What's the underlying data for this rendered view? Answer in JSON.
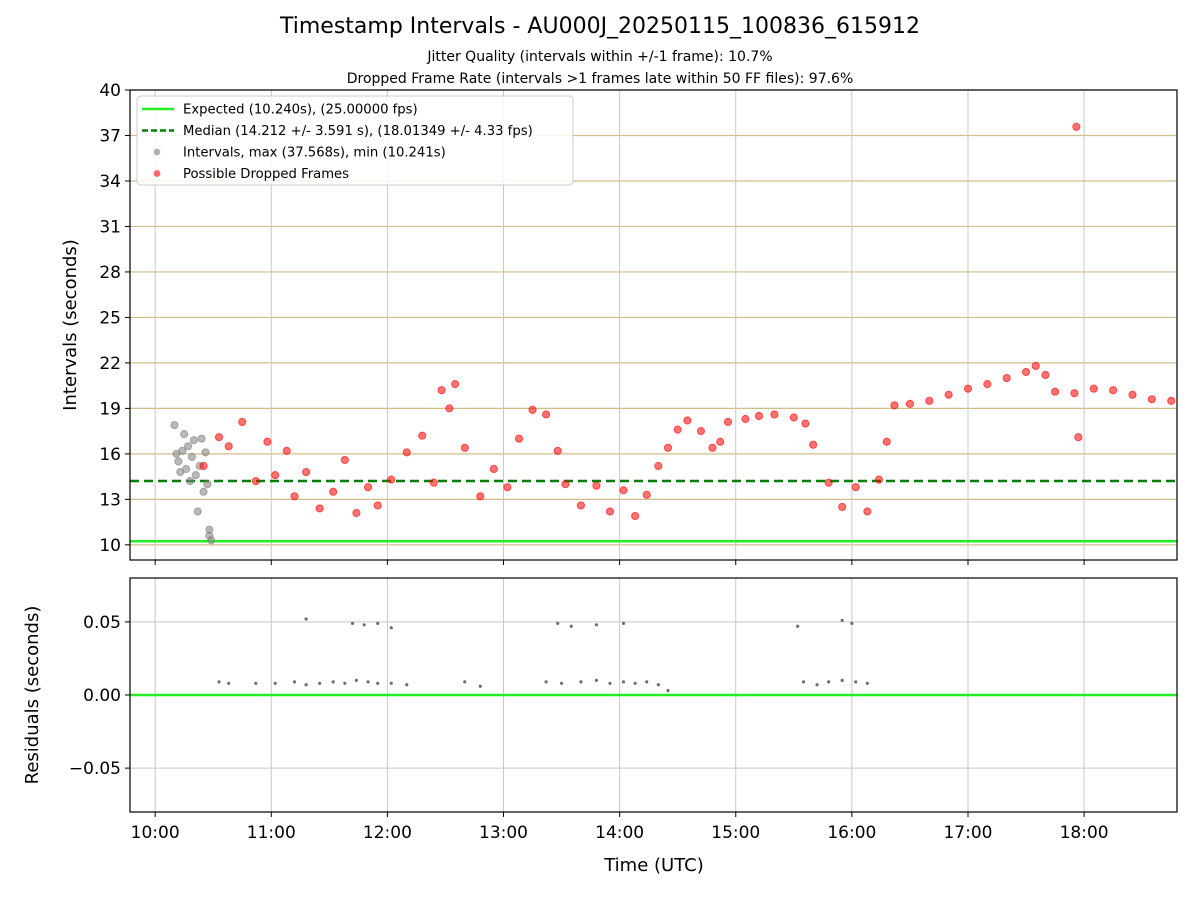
{
  "chart_data": [
    {
      "type": "scatter",
      "title": "Timestamp Intervals - AU000J_20250115_100836_615912",
      "subtitle_1": "Jitter Quality (intervals within +/-1 frame): 10.7%",
      "subtitle_2": "Dropped Frame Rate (intervals >1 frames late within 50 FF files): 97.6%",
      "ylabel": "Intervals (seconds)",
      "ylim": [
        9.0,
        40.0
      ],
      "yticks": [
        10,
        13,
        16,
        19,
        22,
        25,
        28,
        31,
        34,
        37,
        40
      ],
      "ytick_labels": [
        "10",
        "13",
        "16",
        "19",
        "22",
        "25",
        "28",
        "31",
        "34",
        "37",
        "40"
      ],
      "xlim": [
        "09:47",
        "18:48"
      ],
      "grid": true,
      "legend_position": "top-left",
      "legend": [
        "Expected (10.240s), (25.00000 fps)",
        "Median (14.212 +/- 3.591 s), (18.01349 +/- 4.33 fps)",
        "Intervals, max (37.568s), min (10.241s)",
        "Possible Dropped Frames"
      ],
      "lines": [
        {
          "name": "Expected (10.240s), (25.00000 fps)",
          "y": 10.24,
          "color": "#22ee22",
          "style": "solid"
        },
        {
          "name": "Median (14.212 +/- 3.591 s), (18.01349 +/- 4.33 fps)",
          "y": 14.212,
          "color": "#007f00",
          "style": "dashed"
        }
      ],
      "series": [
        {
          "name": "Intervals, max (37.568s), min (10.241s)",
          "color": "#808080",
          "points": [
            [
              "10:10",
              17.9
            ],
            [
              "10:11",
              16.0
            ],
            [
              "10:12",
              15.5
            ],
            [
              "10:13",
              14.8
            ],
            [
              "10:14",
              16.2
            ],
            [
              "10:15",
              17.3
            ],
            [
              "10:16",
              15.0
            ],
            [
              "10:17",
              16.5
            ],
            [
              "10:18",
              14.2
            ],
            [
              "10:19",
              15.8
            ],
            [
              "10:20",
              16.9
            ],
            [
              "10:21",
              14.6
            ],
            [
              "10:22",
              12.2
            ],
            [
              "10:23",
              15.2
            ],
            [
              "10:24",
              17.0
            ],
            [
              "10:25",
              13.5
            ],
            [
              "10:26",
              16.1
            ],
            [
              "10:27",
              14.0
            ],
            [
              "10:28",
              11.0
            ],
            [
              "10:28",
              10.6
            ],
            [
              "10:29",
              10.3
            ]
          ]
        },
        {
          "name": "Possible Dropped Frames",
          "color": "#ff0000",
          "points": [
            [
              "10:25",
              15.2
            ],
            [
              "10:33",
              17.1
            ],
            [
              "10:38",
              16.5
            ],
            [
              "10:45",
              18.1
            ],
            [
              "10:52",
              14.2
            ],
            [
              "10:58",
              16.8
            ],
            [
              "11:02",
              14.6
            ],
            [
              "11:08",
              16.2
            ],
            [
              "11:12",
              13.2
            ],
            [
              "11:18",
              14.8
            ],
            [
              "11:25",
              12.4
            ],
            [
              "11:32",
              13.5
            ],
            [
              "11:38",
              15.6
            ],
            [
              "11:44",
              12.1
            ],
            [
              "11:50",
              13.8
            ],
            [
              "11:55",
              12.6
            ],
            [
              "12:02",
              14.3
            ],
            [
              "12:10",
              16.1
            ],
            [
              "12:18",
              17.2
            ],
            [
              "12:24",
              14.1
            ],
            [
              "12:28",
              20.2
            ],
            [
              "12:32",
              19.0
            ],
            [
              "12:35",
              20.6
            ],
            [
              "12:40",
              16.4
            ],
            [
              "12:48",
              13.2
            ],
            [
              "12:55",
              15.0
            ],
            [
              "13:02",
              13.8
            ],
            [
              "13:08",
              17.0
            ],
            [
              "13:15",
              18.9
            ],
            [
              "13:22",
              18.6
            ],
            [
              "13:28",
              16.2
            ],
            [
              "13:32",
              14.0
            ],
            [
              "13:40",
              12.6
            ],
            [
              "13:48",
              13.9
            ],
            [
              "13:55",
              12.2
            ],
            [
              "14:02",
              13.6
            ],
            [
              "14:08",
              11.9
            ],
            [
              "14:14",
              13.3
            ],
            [
              "14:20",
              15.2
            ],
            [
              "14:25",
              16.4
            ],
            [
              "14:30",
              17.6
            ],
            [
              "14:35",
              18.2
            ],
            [
              "14:42",
              17.5
            ],
            [
              "14:48",
              16.4
            ],
            [
              "14:52",
              16.8
            ],
            [
              "14:56",
              18.1
            ],
            [
              "15:05",
              18.3
            ],
            [
              "15:12",
              18.5
            ],
            [
              "15:20",
              18.6
            ],
            [
              "15:30",
              18.4
            ],
            [
              "15:36",
              18.0
            ],
            [
              "15:40",
              16.6
            ],
            [
              "15:48",
              14.1
            ],
            [
              "15:55",
              12.5
            ],
            [
              "16:02",
              13.8
            ],
            [
              "16:08",
              12.2
            ],
            [
              "16:14",
              14.3
            ],
            [
              "16:18",
              16.8
            ],
            [
              "16:22",
              19.2
            ],
            [
              "16:30",
              19.3
            ],
            [
              "16:40",
              19.5
            ],
            [
              "16:50",
              19.9
            ],
            [
              "17:00",
              20.3
            ],
            [
              "17:10",
              20.6
            ],
            [
              "17:20",
              21.0
            ],
            [
              "17:30",
              21.4
            ],
            [
              "17:35",
              21.8
            ],
            [
              "17:40",
              21.2
            ],
            [
              "17:45",
              20.1
            ],
            [
              "17:55",
              20.0
            ],
            [
              "17:56",
              37.568
            ],
            [
              "17:57",
              17.1
            ],
            [
              "18:05",
              20.3
            ],
            [
              "18:15",
              20.2
            ],
            [
              "18:25",
              19.9
            ],
            [
              "18:35",
              19.6
            ],
            [
              "18:45",
              19.5
            ]
          ]
        }
      ]
    },
    {
      "type": "scatter",
      "ylabel": "Residuals (seconds)",
      "xlabel": "Time (UTC)",
      "ylim": [
        -0.08,
        0.08
      ],
      "yticks": [
        -0.05,
        0.0,
        0.05
      ],
      "ytick_labels": [
        "−0.05",
        "0.00",
        "0.05"
      ],
      "xticks": [
        "10:00",
        "11:00",
        "12:00",
        "13:00",
        "14:00",
        "15:00",
        "16:00",
        "17:00",
        "18:00"
      ],
      "xlim": [
        "09:47",
        "18:48"
      ],
      "grid": true,
      "lines": [
        {
          "y": 0.0,
          "color": "#22ee22",
          "style": "solid"
        }
      ],
      "series": [
        {
          "color": "#6e6e6e",
          "points": [
            [
              "10:33",
              0.009
            ],
            [
              "10:38",
              0.008
            ],
            [
              "10:52",
              0.008
            ],
            [
              "11:02",
              0.008
            ],
            [
              "11:12",
              0.009
            ],
            [
              "11:18",
              0.007
            ],
            [
              "11:25",
              0.008
            ],
            [
              "11:32",
              0.009
            ],
            [
              "11:38",
              0.008
            ],
            [
              "11:44",
              0.01
            ],
            [
              "11:50",
              0.009
            ],
            [
              "11:55",
              0.008
            ],
            [
              "12:02",
              0.008
            ],
            [
              "12:10",
              0.007
            ],
            [
              "12:40",
              0.009
            ],
            [
              "12:48",
              0.006
            ],
            [
              "13:22",
              0.009
            ],
            [
              "13:30",
              0.008
            ],
            [
              "13:40",
              0.009
            ],
            [
              "13:48",
              0.01
            ],
            [
              "13:55",
              0.008
            ],
            [
              "14:02",
              0.009
            ],
            [
              "14:08",
              0.008
            ],
            [
              "14:14",
              0.009
            ],
            [
              "14:20",
              0.007
            ],
            [
              "14:25",
              0.003
            ],
            [
              "15:35",
              0.009
            ],
            [
              "15:42",
              0.007
            ],
            [
              "15:48",
              0.009
            ],
            [
              "15:55",
              0.01
            ],
            [
              "16:02",
              0.009
            ],
            [
              "16:08",
              0.008
            ],
            [
              "11:18",
              0.052
            ],
            [
              "11:42",
              0.049
            ],
            [
              "11:48",
              0.048
            ],
            [
              "11:55",
              0.049
            ],
            [
              "12:02",
              0.046
            ],
            [
              "13:28",
              0.049
            ],
            [
              "13:35",
              0.047
            ],
            [
              "13:48",
              0.048
            ],
            [
              "14:02",
              0.049
            ],
            [
              "15:32",
              0.047
            ],
            [
              "15:55",
              0.051
            ],
            [
              "16:00",
              0.049
            ]
          ]
        }
      ]
    }
  ]
}
